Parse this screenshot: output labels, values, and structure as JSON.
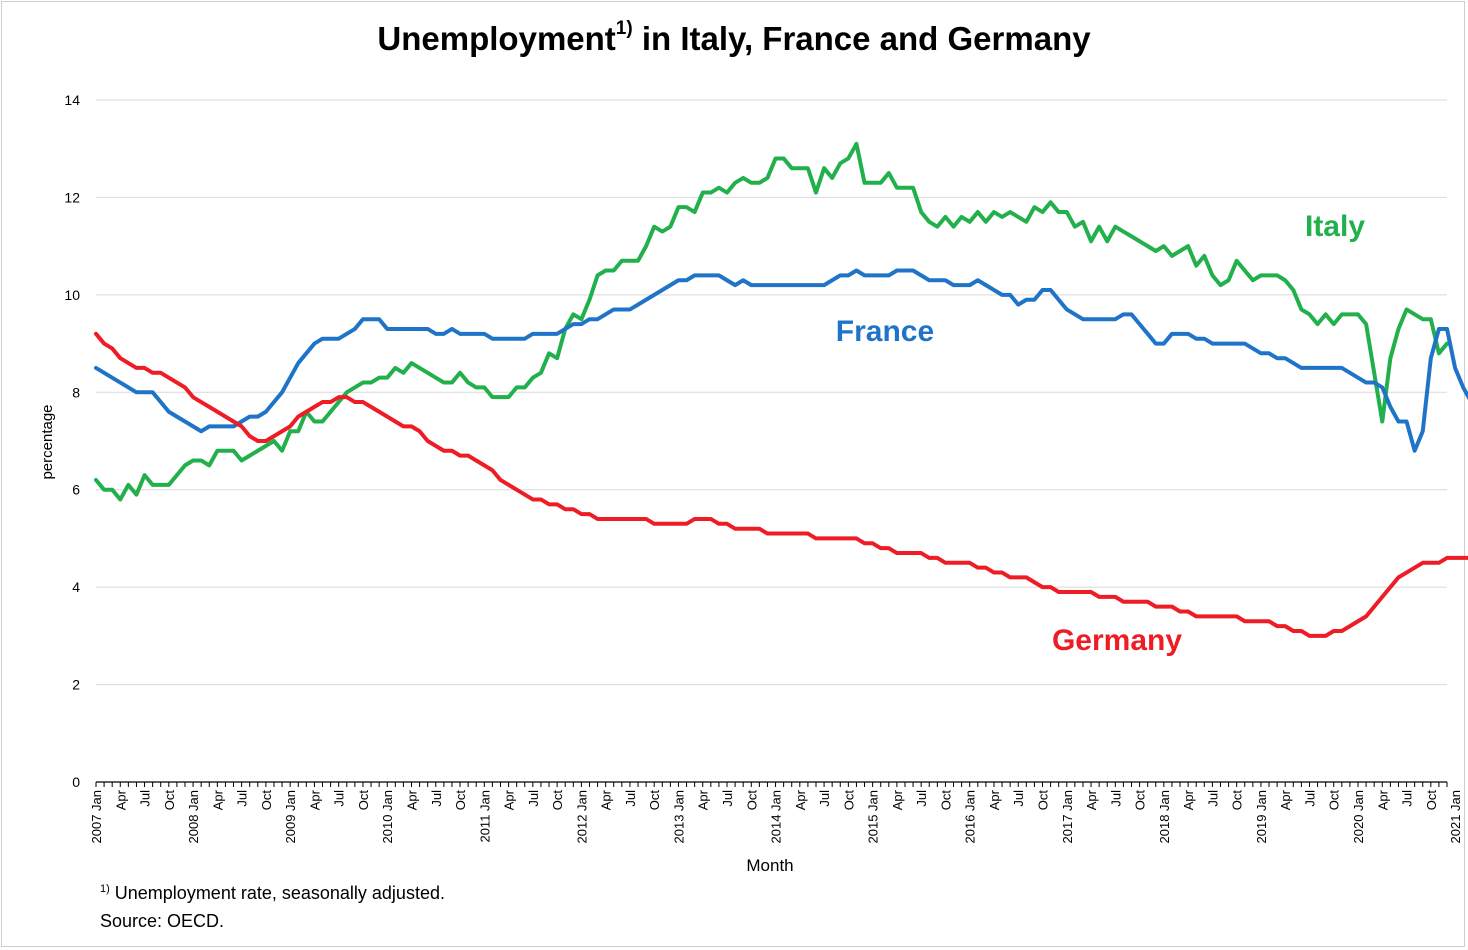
{
  "title": {
    "main": "Unemployment",
    "sup": "1)",
    "rest": " in Italy, France and Germany"
  },
  "footnote": {
    "marker": "1)",
    "text": " Unemployment rate, seasonally adjusted."
  },
  "source": "Source: OECD.",
  "chart_data": {
    "type": "line",
    "xlabel": "Month",
    "ylabel": "percentage",
    "ylim": [
      0,
      14
    ],
    "yticks": [
      0,
      2,
      4,
      6,
      8,
      10,
      12,
      14
    ],
    "grid": true,
    "legend": "inline labels",
    "start": "2007-01",
    "x_tick_labels": [
      "2007 Jan",
      "Apr",
      "Jul",
      "Oct",
      "2008 Jan",
      "Apr",
      "Jul",
      "Oct",
      "2009 Jan",
      "Apr",
      "Jul",
      "Oct",
      "2010 Jan",
      "Apr",
      "Jul",
      "Oct",
      "2011 Jan",
      "Apr",
      "Jul",
      "Oct",
      "2012 Jan",
      "Apr",
      "Jul",
      "Oct",
      "2013 Jan",
      "Apr",
      "Jul",
      "Oct",
      "2014 Jan",
      "Apr",
      "Jul",
      "Oct",
      "2015 Jan",
      "Apr",
      "Jul",
      "Oct",
      "2016 Jan",
      "Apr",
      "Jul",
      "Oct",
      "2017 Jan",
      "Apr",
      "Jul",
      "Oct",
      "2018 Jan",
      "Apr",
      "Jul",
      "Oct",
      "2019 Jan",
      "Apr",
      "Jul",
      "Oct",
      "2020 Jan",
      "Apr",
      "Jul",
      "Oct",
      "2021 Jan"
    ],
    "series": [
      {
        "name": "Italy",
        "color": "#21b04b",
        "values": [
          6.2,
          6.0,
          6.0,
          5.8,
          6.1,
          5.9,
          6.3,
          6.1,
          6.1,
          6.1,
          6.3,
          6.5,
          6.6,
          6.6,
          6.5,
          6.8,
          6.8,
          6.8,
          6.6,
          6.7,
          6.8,
          6.9,
          7.0,
          6.8,
          7.2,
          7.2,
          7.6,
          7.4,
          7.4,
          7.6,
          7.8,
          8.0,
          8.1,
          8.2,
          8.2,
          8.3,
          8.3,
          8.5,
          8.4,
          8.6,
          8.5,
          8.4,
          8.3,
          8.2,
          8.2,
          8.4,
          8.2,
          8.1,
          8.1,
          7.9,
          7.9,
          7.9,
          8.1,
          8.1,
          8.3,
          8.4,
          8.8,
          8.7,
          9.3,
          9.6,
          9.5,
          9.9,
          10.4,
          10.5,
          10.5,
          10.7,
          10.7,
          10.7,
          11.0,
          11.4,
          11.3,
          11.4,
          11.8,
          11.8,
          11.7,
          12.1,
          12.1,
          12.2,
          12.1,
          12.3,
          12.4,
          12.3,
          12.3,
          12.4,
          12.8,
          12.8,
          12.6,
          12.6,
          12.6,
          12.1,
          12.6,
          12.4,
          12.7,
          12.8,
          13.1,
          12.3,
          12.3,
          12.3,
          12.5,
          12.2,
          12.2,
          12.2,
          11.7,
          11.5,
          11.4,
          11.6,
          11.4,
          11.6,
          11.5,
          11.7,
          11.5,
          11.7,
          11.6,
          11.7,
          11.6,
          11.5,
          11.8,
          11.7,
          11.9,
          11.7,
          11.7,
          11.4,
          11.5,
          11.1,
          11.4,
          11.1,
          11.4,
          11.3,
          11.2,
          11.1,
          11.0,
          10.9,
          11.0,
          10.8,
          10.9,
          11.0,
          10.6,
          10.8,
          10.4,
          10.2,
          10.3,
          10.7,
          10.5,
          10.3,
          10.4,
          10.4,
          10.4,
          10.3,
          10.1,
          9.7,
          9.6,
          9.4,
          9.6,
          9.4,
          9.6,
          9.6,
          9.6,
          9.4,
          8.4,
          7.4,
          8.7,
          9.3,
          9.7,
          9.6,
          9.5,
          9.5,
          8.8,
          9.0
        ]
      },
      {
        "name": "France",
        "color": "#1f74c8",
        "values": [
          8.5,
          8.4,
          8.3,
          8.2,
          8.1,
          8.0,
          8.0,
          8.0,
          7.8,
          7.6,
          7.5,
          7.4,
          7.3,
          7.2,
          7.3,
          7.3,
          7.3,
          7.3,
          7.4,
          7.5,
          7.5,
          7.6,
          7.8,
          8.0,
          8.3,
          8.6,
          8.8,
          9.0,
          9.1,
          9.1,
          9.1,
          9.2,
          9.3,
          9.5,
          9.5,
          9.5,
          9.3,
          9.3,
          9.3,
          9.3,
          9.3,
          9.3,
          9.2,
          9.2,
          9.3,
          9.2,
          9.2,
          9.2,
          9.2,
          9.1,
          9.1,
          9.1,
          9.1,
          9.1,
          9.2,
          9.2,
          9.2,
          9.2,
          9.3,
          9.4,
          9.4,
          9.5,
          9.5,
          9.6,
          9.7,
          9.7,
          9.7,
          9.8,
          9.9,
          10.0,
          10.1,
          10.2,
          10.3,
          10.3,
          10.4,
          10.4,
          10.4,
          10.4,
          10.3,
          10.2,
          10.3,
          10.2,
          10.2,
          10.2,
          10.2,
          10.2,
          10.2,
          10.2,
          10.2,
          10.2,
          10.2,
          10.3,
          10.4,
          10.4,
          10.5,
          10.4,
          10.4,
          10.4,
          10.4,
          10.5,
          10.5,
          10.5,
          10.4,
          10.3,
          10.3,
          10.3,
          10.2,
          10.2,
          10.2,
          10.3,
          10.2,
          10.1,
          10.0,
          10.0,
          9.8,
          9.9,
          9.9,
          10.1,
          10.1,
          9.9,
          9.7,
          9.6,
          9.5,
          9.5,
          9.5,
          9.5,
          9.5,
          9.6,
          9.6,
          9.4,
          9.2,
          9.0,
          9.0,
          9.2,
          9.2,
          9.2,
          9.1,
          9.1,
          9.0,
          9.0,
          9.0,
          9.0,
          9.0,
          8.9,
          8.8,
          8.8,
          8.7,
          8.7,
          8.6,
          8.5,
          8.5,
          8.5,
          8.5,
          8.5,
          8.5,
          8.4,
          8.3,
          8.2,
          8.2,
          8.1,
          7.7,
          7.4,
          7.4,
          6.8,
          7.2,
          8.7,
          9.3,
          9.3,
          8.5,
          8.1,
          7.8,
          7.9
        ]
      },
      {
        "name": "Germany",
        "color": "#ee1c25",
        "values": [
          9.2,
          9.0,
          8.9,
          8.7,
          8.6,
          8.5,
          8.5,
          8.4,
          8.4,
          8.3,
          8.2,
          8.1,
          7.9,
          7.8,
          7.7,
          7.6,
          7.5,
          7.4,
          7.3,
          7.1,
          7.0,
          7.0,
          7.1,
          7.2,
          7.3,
          7.5,
          7.6,
          7.7,
          7.8,
          7.8,
          7.9,
          7.9,
          7.8,
          7.8,
          7.7,
          7.6,
          7.5,
          7.4,
          7.3,
          7.3,
          7.2,
          7.0,
          6.9,
          6.8,
          6.8,
          6.7,
          6.7,
          6.6,
          6.5,
          6.4,
          6.2,
          6.1,
          6.0,
          5.9,
          5.8,
          5.8,
          5.7,
          5.7,
          5.6,
          5.6,
          5.5,
          5.5,
          5.4,
          5.4,
          5.4,
          5.4,
          5.4,
          5.4,
          5.4,
          5.3,
          5.3,
          5.3,
          5.3,
          5.3,
          5.4,
          5.4,
          5.4,
          5.3,
          5.3,
          5.2,
          5.2,
          5.2,
          5.2,
          5.1,
          5.1,
          5.1,
          5.1,
          5.1,
          5.1,
          5.0,
          5.0,
          5.0,
          5.0,
          5.0,
          5.0,
          4.9,
          4.9,
          4.8,
          4.8,
          4.7,
          4.7,
          4.7,
          4.7,
          4.6,
          4.6,
          4.5,
          4.5,
          4.5,
          4.5,
          4.4,
          4.4,
          4.3,
          4.3,
          4.2,
          4.2,
          4.2,
          4.1,
          4.0,
          4.0,
          3.9,
          3.9,
          3.9,
          3.9,
          3.9,
          3.8,
          3.8,
          3.8,
          3.7,
          3.7,
          3.7,
          3.7,
          3.6,
          3.6,
          3.6,
          3.5,
          3.5,
          3.4,
          3.4,
          3.4,
          3.4,
          3.4,
          3.4,
          3.3,
          3.3,
          3.3,
          3.3,
          3.2,
          3.2,
          3.1,
          3.1,
          3.0,
          3.0,
          3.0,
          3.1,
          3.1,
          3.2,
          3.3,
          3.4,
          3.6,
          3.8,
          4.0,
          4.2,
          4.3,
          4.4,
          4.5,
          4.5,
          4.5,
          4.6,
          4.6,
          4.6,
          4.6,
          4.6
        ]
      }
    ],
    "series_labels": [
      "Italy",
      "France",
      "Germany"
    ]
  }
}
